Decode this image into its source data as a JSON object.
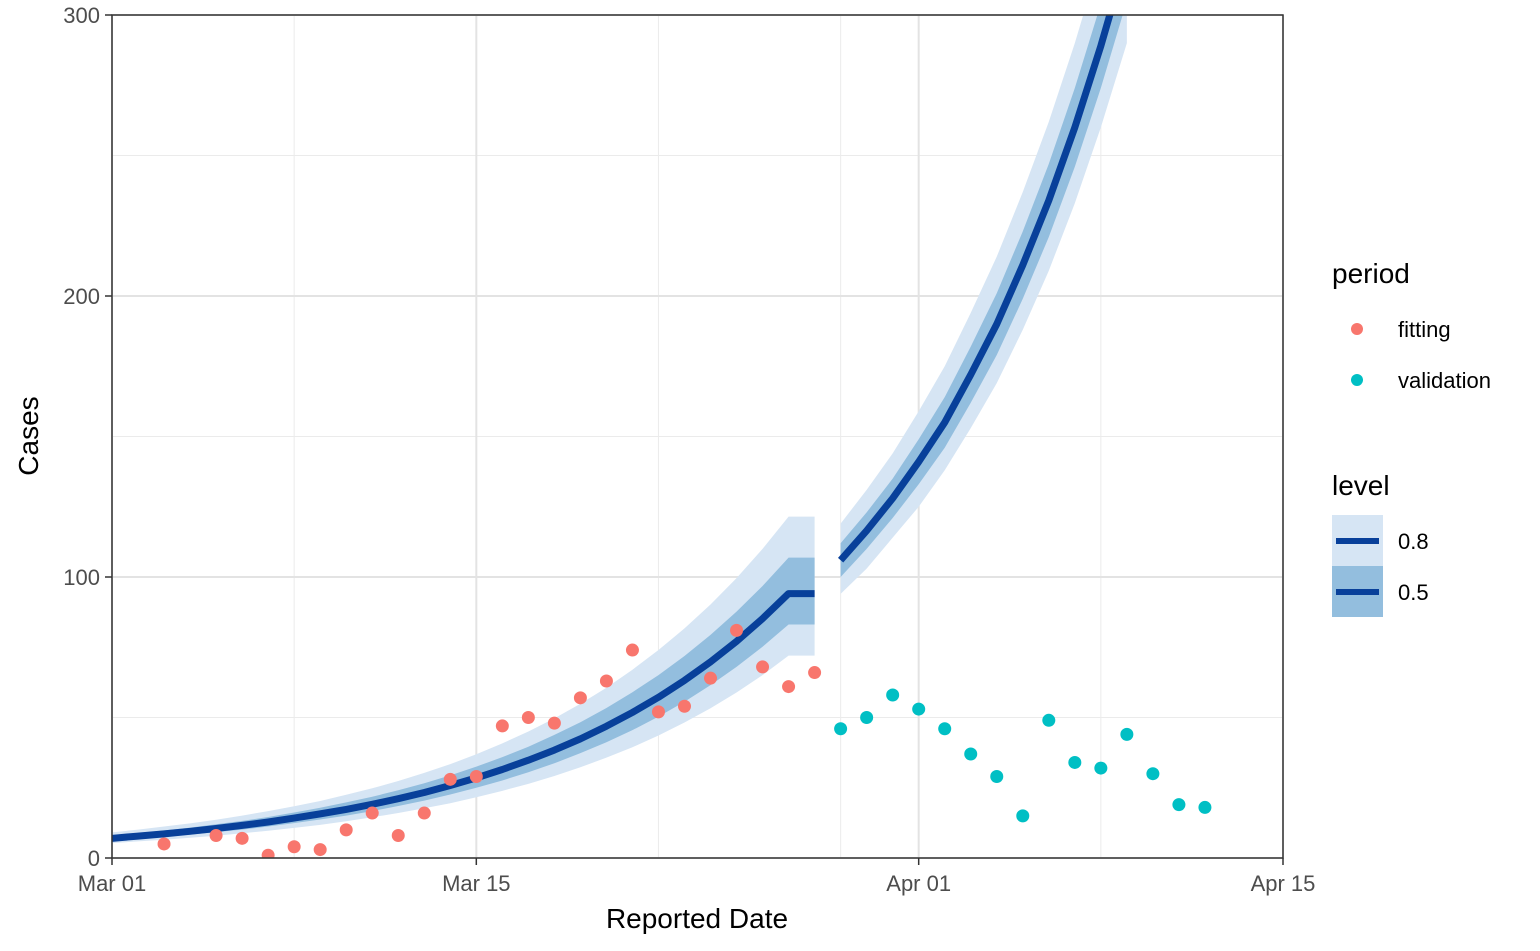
{
  "chart_data": {
    "type": "line",
    "xlabel": "Reported Date",
    "ylabel": "Cases",
    "x_axis_type": "date",
    "xlim": [
      "2020-03-01",
      "2020-04-15"
    ],
    "ylim": [
      0,
      300
    ],
    "x_ticks": [
      {
        "date": "2020-03-01",
        "label": "Mar 01"
      },
      {
        "date": "2020-03-15",
        "label": "Mar 15"
      },
      {
        "date": "2020-04-01",
        "label": "Apr 01"
      },
      {
        "date": "2020-04-15",
        "label": "Apr 15"
      }
    ],
    "x_minor_gridlines": [
      "2020-03-08",
      "2020-03-22",
      "2020-03-29",
      "2020-04-08"
    ],
    "y_ticks": [
      0,
      100,
      200,
      300
    ],
    "y_minor_gridlines": [
      50,
      150,
      250
    ],
    "grid": true,
    "colors": {
      "fitting": "#F8766D",
      "validation": "#00BFC4",
      "median_line": "#08409A",
      "band_80": "#D6E5F4",
      "band_50": "#93BEDE"
    },
    "legend": {
      "position": "right",
      "period": {
        "title": "period",
        "entries": [
          "fitting",
          "validation"
        ]
      },
      "level": {
        "title": "level",
        "entries": [
          "0.8",
          "0.5"
        ]
      }
    },
    "series": [
      {
        "name": "fitting",
        "kind": "points",
        "x": [
          "2020-03-03",
          "2020-03-05",
          "2020-03-06",
          "2020-03-07",
          "2020-03-08",
          "2020-03-09",
          "2020-03-10",
          "2020-03-11",
          "2020-03-12",
          "2020-03-13",
          "2020-03-14",
          "2020-03-15",
          "2020-03-16",
          "2020-03-17",
          "2020-03-18",
          "2020-03-19",
          "2020-03-20",
          "2020-03-21",
          "2020-03-22",
          "2020-03-23",
          "2020-03-24",
          "2020-03-25",
          "2020-03-26",
          "2020-03-27",
          "2020-03-28"
        ],
        "y": [
          5,
          8,
          7,
          1,
          4,
          3,
          10,
          16,
          8,
          16,
          28,
          29,
          47,
          50,
          48,
          57,
          63,
          74,
          52,
          54,
          64,
          81,
          68,
          61,
          66
        ]
      },
      {
        "name": "validation",
        "kind": "points",
        "x": [
          "2020-03-29",
          "2020-03-30",
          "2020-03-31",
          "2020-04-01",
          "2020-04-02",
          "2020-04-03",
          "2020-04-04",
          "2020-04-05",
          "2020-04-06",
          "2020-04-07",
          "2020-04-08",
          "2020-04-09",
          "2020-04-10",
          "2020-04-11",
          "2020-04-12"
        ],
        "y": [
          46,
          50,
          58,
          53,
          46,
          37,
          29,
          15,
          49,
          34,
          32,
          44,
          30,
          19,
          18
        ]
      }
    ],
    "fit_segment": {
      "x": [
        "2020-03-01",
        "2020-03-02",
        "2020-03-03",
        "2020-03-04",
        "2020-03-05",
        "2020-03-06",
        "2020-03-07",
        "2020-03-08",
        "2020-03-09",
        "2020-03-10",
        "2020-03-11",
        "2020-03-12",
        "2020-03-13",
        "2020-03-14",
        "2020-03-15",
        "2020-03-16",
        "2020-03-17",
        "2020-03-18",
        "2020-03-19",
        "2020-03-20",
        "2020-03-21",
        "2020-03-22",
        "2020-03-23",
        "2020-03-24",
        "2020-03-25",
        "2020-03-26",
        "2020-03-27",
        "2020-03-28"
      ],
      "median": [
        7,
        7.8,
        8.6,
        9.5,
        10.5,
        11.6,
        12.8,
        14.2,
        15.7,
        17.3,
        19.1,
        21.1,
        23.3,
        25.8,
        28.5,
        31.5,
        34.8,
        38.4,
        42.4,
        46.9,
        51.8,
        57.2,
        63.2,
        69.8,
        77.1,
        85.2,
        94.1,
        94.1
      ],
      "lo50": [
        6.1,
        6.8,
        7.5,
        8.3,
        9.2,
        10.1,
        11.2,
        12.4,
        13.7,
        15.1,
        16.7,
        18.5,
        20.4,
        22.6,
        25,
        27.6,
        30.5,
        33.7,
        37.3,
        41.2,
        45.5,
        50.3,
        55.6,
        61.5,
        68,
        75.2,
        83.1,
        83.1
      ],
      "hi50": [
        8,
        8.9,
        9.8,
        10.8,
        12,
        13.2,
        14.6,
        16.2,
        17.9,
        19.8,
        21.8,
        24.1,
        26.6,
        29.4,
        32.5,
        35.9,
        39.6,
        43.8,
        48.3,
        53.4,
        59,
        65.1,
        71.9,
        79.4,
        87.7,
        96.8,
        106.9,
        106.9
      ],
      "lo80": [
        5.3,
        5.9,
        6.5,
        7.2,
        7.9,
        8.8,
        9.7,
        10.7,
        11.8,
        13.1,
        14.5,
        16,
        17.7,
        19.5,
        21.6,
        23.9,
        26.4,
        29.2,
        32.3,
        35.7,
        39.4,
        43.6,
        48.2,
        53.3,
        58.9,
        65.1,
        72,
        72
      ],
      "hi80": [
        9.1,
        10.1,
        11.2,
        12.3,
        13.6,
        15.1,
        16.7,
        18.4,
        20.3,
        22.5,
        24.8,
        27.4,
        30.3,
        33.4,
        36.9,
        40.8,
        45,
        49.7,
        54.9,
        60.6,
        67,
        74,
        81.7,
        90.2,
        99.6,
        110,
        121.5,
        121.5
      ]
    },
    "forecast_segment": {
      "x": [
        "2020-03-29",
        "2020-03-30",
        "2020-03-31",
        "2020-04-01",
        "2020-04-02",
        "2020-04-03",
        "2020-04-04",
        "2020-04-05",
        "2020-04-06",
        "2020-04-07",
        "2020-04-08",
        "2020-04-09"
      ],
      "median": [
        106,
        116.5,
        128,
        141,
        155,
        172,
        190,
        211,
        234,
        260,
        289,
        321
      ],
      "lo50": [
        100,
        110,
        121,
        133,
        146,
        162,
        179,
        199,
        221,
        246,
        274,
        305
      ],
      "hi50": [
        112,
        123,
        135,
        149,
        164,
        182,
        201,
        223,
        247,
        274,
        304,
        337
      ],
      "lo80": [
        94,
        103,
        114,
        125,
        138,
        153,
        169,
        188,
        209,
        233,
        260,
        290
      ],
      "hi80": [
        119,
        131,
        144,
        159,
        175,
        194,
        214,
        237,
        262,
        290,
        321,
        354
      ]
    }
  }
}
